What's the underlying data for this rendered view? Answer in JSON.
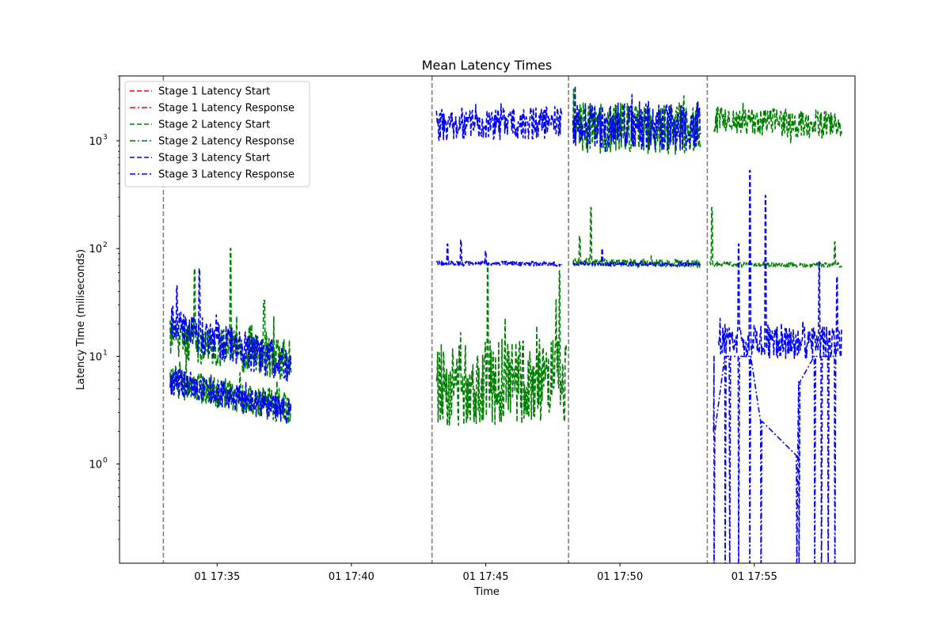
{
  "chart_data": {
    "type": "line",
    "title": "Mean Latency Times",
    "xlabel": "Time",
    "ylabel": "Latency Time (miliseconds)",
    "yscale": "log",
    "xlim": [
      "17:31:22",
      "17:58:45"
    ],
    "ylim": [
      0.12,
      4000
    ],
    "grid": false,
    "legend_position": "top-left",
    "x_ticks": [
      {
        "value": "17:35",
        "label": "01 17:35"
      },
      {
        "value": "17:40",
        "label": "01 17:40"
      },
      {
        "value": "17:45",
        "label": "01 17:45"
      },
      {
        "value": "17:50",
        "label": "01 17:50"
      },
      {
        "value": "17:55",
        "label": "01 17:55"
      }
    ],
    "y_ticks": [
      {
        "value": 1,
        "label": "10",
        "exp": "0"
      },
      {
        "value": 10,
        "label": "10",
        "exp": "1"
      },
      {
        "value": 100,
        "label": "10",
        "exp": "2"
      },
      {
        "value": 1000,
        "label": "10",
        "exp": "3"
      }
    ],
    "vertical_markers": [
      "17:33:00",
      "17:43:00",
      "17:48:05",
      "17:53:15"
    ],
    "marker_color": "#808080",
    "segments_note_visible": false,
    "series": [
      {
        "name": "Stage 1 Latency Start",
        "color": "#ff0000",
        "dash": "dashed",
        "segments": []
      },
      {
        "name": "Stage 1 Latency Response",
        "color": "#ff0000",
        "dash": "dashdot",
        "segments": []
      },
      {
        "name": "Stage 2 Latency Start",
        "color": "#008000",
        "dash": "dashed",
        "segments": [
          {
            "t0": "17:33:15",
            "t1": "17:37:45",
            "base0": 15,
            "base1": 9,
            "noise": 0.45,
            "seed": 11,
            "spikes": [
              [
                "17:35:30",
                100
              ],
              [
                "17:34:10",
                65
              ],
              [
                "17:36:45",
                33
              ]
            ]
          },
          {
            "t0": "17:33:15",
            "t1": "17:37:45",
            "base0": 6,
            "base1": 3.2,
            "noise": 0.35,
            "seed": 12
          },
          {
            "t0": "17:43:10",
            "t1": "17:48:00",
            "base0": 5.5,
            "base1": 6,
            "noise": 0.9,
            "seed": 13,
            "spikes": [
              [
                "17:45:05",
                68
              ],
              [
                "17:47:45",
                62
              ]
            ]
          },
          {
            "t0": "17:48:15",
            "t1": "17:53:00",
            "base0": 1300,
            "base1": 1300,
            "noise": 0.55,
            "seed": 14,
            "floor": 700
          },
          {
            "t0": "17:48:15",
            "t1": "17:53:00",
            "base0": 75,
            "base1": 72,
            "noise": 0.08,
            "seed": 15,
            "spikes": [
              [
                "17:48:55",
                240
              ],
              [
                "17:48:30",
                130
              ]
            ]
          },
          {
            "t0": "17:53:30",
            "t1": "17:58:15",
            "base0": 1550,
            "base1": 1400,
            "noise": 0.3,
            "seed": 16,
            "floor": 800
          },
          {
            "t0": "17:53:20",
            "t1": "17:58:15",
            "base0": 72,
            "base1": 70,
            "noise": 0.05,
            "seed": 17,
            "spikes": [
              [
                "17:53:25",
                240
              ],
              [
                "17:58:00",
                115
              ]
            ]
          }
        ]
      },
      {
        "name": "Stage 2 Latency Response",
        "color": "#008000",
        "dash": "dashdot",
        "segments": []
      },
      {
        "name": "Stage 3 Latency Start",
        "color": "#0000ff",
        "dash": "dashed",
        "segments": [
          {
            "t0": "17:33:15",
            "t1": "17:37:45",
            "base0": 20,
            "base1": 8,
            "noise": 0.4,
            "seed": 21,
            "spikes": [
              [
                "17:34:20",
                65
              ],
              [
                "17:33:30",
                45
              ]
            ]
          },
          {
            "t0": "17:33:15",
            "t1": "17:37:45",
            "base0": 6,
            "base1": 3,
            "noise": 0.3,
            "seed": 22
          },
          {
            "t0": "17:43:10",
            "t1": "17:47:50",
            "base0": 1400,
            "base1": 1500,
            "noise": 0.35,
            "seed": 23,
            "floor": 700
          },
          {
            "t0": "17:43:10",
            "t1": "17:47:50",
            "base0": 73,
            "base1": 72,
            "noise": 0.05,
            "seed": 24,
            "spikes": [
              [
                "17:44:05",
                120
              ],
              [
                "17:43:35",
                110
              ],
              [
                "17:45:00",
                95
              ]
            ]
          },
          {
            "t0": "17:48:15",
            "t1": "17:53:00",
            "base0": 1400,
            "base1": 1300,
            "noise": 0.5,
            "seed": 25,
            "floor": 700
          },
          {
            "t0": "17:48:15",
            "t1": "17:53:00",
            "base0": 72,
            "base1": 71,
            "noise": 0.04,
            "seed": 26,
            "spikes": [
              [
                "17:49:20",
                100
              ]
            ]
          },
          {
            "t0": "17:53:40",
            "t1": "17:58:15",
            "base0": 14,
            "base1": 13,
            "noise": 0.35,
            "seed": 27,
            "spikes": [
              [
                "17:54:50",
                530
              ],
              [
                "17:55:25",
                310
              ],
              [
                "17:54:25",
                110
              ],
              [
                "17:57:25",
                75
              ],
              [
                "17:58:05",
                55
              ]
            ]
          }
        ]
      },
      {
        "name": "Stage 3 Latency Response",
        "color": "#0000ff",
        "dash": "dashdot",
        "segments": [
          {
            "t0": "17:53:30",
            "t1": "17:58:15",
            "base0": 10,
            "base1": 10,
            "noise": 0,
            "seed": 31,
            "drops": [
              "17:53:30",
              "17:53:55",
              "17:54:05",
              "17:54:25",
              "17:54:50",
              "17:55:15",
              "17:56:35",
              "17:56:40",
              "17:57:15",
              "17:57:30",
              "17:57:45",
              "17:58:00"
            ],
            "drop_peaks": [
              2,
              10,
              10,
              10,
              10,
              2.5,
              1.2,
              5.8,
              10,
              10,
              10,
              10
            ]
          }
        ]
      }
    ]
  }
}
